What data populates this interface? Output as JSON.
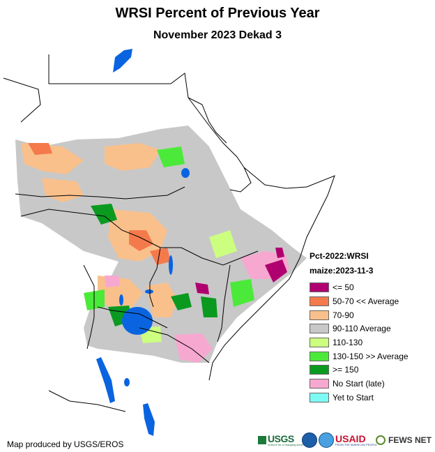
{
  "title": "WRSI Percent of Previous Year",
  "subtitle": "November 2023 Dekad 3",
  "legend": {
    "heading1": "Pct-2022:WRSI",
    "heading2": "maize:2023-11-3",
    "items": [
      {
        "label": "<= 50",
        "color": "#b0006f"
      },
      {
        "label": "50-70 << Average",
        "color": "#f47a4c"
      },
      {
        "label": "70-90",
        "color": "#f9c08c"
      },
      {
        "label": "90-110 Average",
        "color": "#c8c8c8"
      },
      {
        "label": "110-130",
        "color": "#ccff80"
      },
      {
        "label": "130-150 >> Average",
        "color": "#4bea3a"
      },
      {
        "label": ">= 150",
        "color": "#0a9a20"
      },
      {
        "label": "No Start (late)",
        "color": "#f7a8d0"
      },
      {
        "label": "Yet to Start",
        "color": "#7efaf5"
      }
    ]
  },
  "credit": "Map produced by USGS/EROS",
  "logos": {
    "usgs": "USGS",
    "usgs_tagline": "science for a changing world",
    "usaid": "USAID",
    "usaid_tagline": "FROM THE AMERICAN PEOPLE",
    "fews": "FEWS NET"
  },
  "colors": {
    "water": "#0a64e0",
    "border": "#000000"
  }
}
